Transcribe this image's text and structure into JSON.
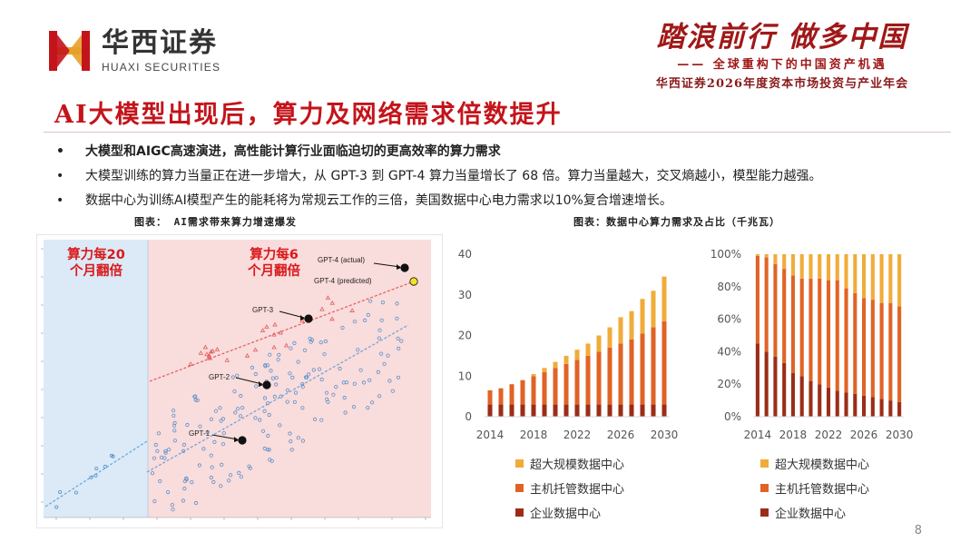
{
  "header": {
    "logo_cn": "华西证券",
    "logo_en": "HUAXI SECURITIES",
    "slogan_main": "踏浪前行 做多中国",
    "slogan_sub": "—— 全球重构下的中国资产机遇",
    "slogan_sub2": "华西证券2026年度资本市场投资与产业年会",
    "brand_color": "#c4141b"
  },
  "title": "AI大模型出现后，算力及网络需求倍数提升",
  "bullets": [
    "大模型和AIGC高速演进，高性能计算行业面临迫切的更高效率的算力需求",
    "大模型训练的算力当量正在进一步增大，从 GPT-3 到 GPT-4 算力当量增长了 68 倍。算力当量越大，交叉熵越小，模型能力越强。",
    "数据中心为训练AI模型产生的能耗将为常规云工作的三倍，美国数据中心电力需求以10%复合增速增长。"
  ],
  "captions": {
    "left": "图表： AI需求带来算力增速爆发",
    "right": "图表：数据中心算力需求及占比（千兆瓦）"
  },
  "page_number": "8",
  "chart_data": [
    {
      "type": "scatter",
      "annotations": {
        "zone_left": "算力每20个月翻倍",
        "zone_right": "算力每6个月翻倍"
      },
      "highlighted_points": [
        {
          "label": "GPT-1",
          "x": 2018.4,
          "y": 19
        },
        {
          "label": "GPT-2",
          "x": 2019.1,
          "y": 21
        },
        {
          "label": "GPT-3",
          "x": 2020.4,
          "y": 23.5
        },
        {
          "label": "GPT-4 (actual)",
          "x": 2023.2,
          "y": 25.2
        },
        {
          "label": "GPT-4 (predicted)",
          "x": 2023.4,
          "y": 24.6
        }
      ],
      "colors": {
        "zone_left": "#dbeaf6",
        "zone_right": "#f9dcdc",
        "zone_text": "#d9191c",
        "dots": "#5a8fc8",
        "trend_red": "#e45a5a",
        "trend_blue": "#6aa3d8",
        "predicted": "#f2e22a"
      }
    },
    {
      "type": "bar",
      "stacked": true,
      "categories": [
        "2014",
        "2015",
        "2016",
        "2017",
        "2018",
        "2019",
        "2020",
        "2021",
        "2022",
        "2023",
        "2024",
        "2025",
        "2026",
        "2027",
        "2028",
        "2029",
        "2030"
      ],
      "x_tick_labels": [
        "2014",
        "2018",
        "2022",
        "2026",
        "2030"
      ],
      "y_ticks": [
        "0",
        "10",
        "20",
        "30",
        "40"
      ],
      "ylim": [
        0,
        40
      ],
      "series": [
        {
          "name": "企业数据中心",
          "color": "#9b2d17",
          "values": [
            3,
            3,
            3,
            3,
            3,
            3,
            3,
            3,
            3,
            3,
            3,
            3,
            3,
            3,
            3,
            3,
            3
          ]
        },
        {
          "name": "主机托管数据中心",
          "color": "#e06326",
          "values": [
            3.5,
            4,
            5,
            6,
            7,
            8,
            9,
            10,
            11,
            12,
            13,
            14,
            15,
            16,
            17.5,
            19,
            20.5
          ]
        },
        {
          "name": "超大规模数据中心",
          "color": "#f0ac3a",
          "values": [
            0,
            0,
            0,
            0,
            0.5,
            1,
            1.5,
            2,
            2.5,
            3,
            4,
            5,
            6.5,
            7,
            8.5,
            9,
            11
          ]
        }
      ]
    },
    {
      "type": "bar",
      "stacked": true,
      "percent": true,
      "categories": [
        "2014",
        "2015",
        "2016",
        "2017",
        "2018",
        "2019",
        "2020",
        "2021",
        "2022",
        "2023",
        "2024",
        "2025",
        "2026",
        "2027",
        "2028",
        "2029",
        "2030"
      ],
      "x_tick_labels": [
        "2014",
        "2018",
        "2022",
        "2026",
        "2030"
      ],
      "y_ticks": [
        "0%",
        "20%",
        "40%",
        "60%",
        "80%",
        "100%"
      ],
      "ylim": [
        0,
        100
      ],
      "series": [
        {
          "name": "企业数据中心",
          "color": "#9b2d17",
          "values": [
            45,
            40,
            37,
            33,
            27,
            25,
            22,
            20,
            18,
            16,
            15,
            14,
            13,
            12,
            11,
            10,
            9
          ]
        },
        {
          "name": "主机托管数据中心",
          "color": "#e06326",
          "values": [
            54,
            58,
            57,
            58,
            60,
            60,
            63,
            65,
            66,
            68,
            64,
            62,
            60,
            60,
            59,
            60,
            59
          ]
        },
        {
          "name": "超大规模数据中心",
          "color": "#f0ac3a",
          "values": [
            1,
            2,
            6,
            9,
            13,
            15,
            15,
            15,
            16,
            16,
            21,
            24,
            27,
            28,
            30,
            30,
            32
          ]
        }
      ]
    }
  ]
}
